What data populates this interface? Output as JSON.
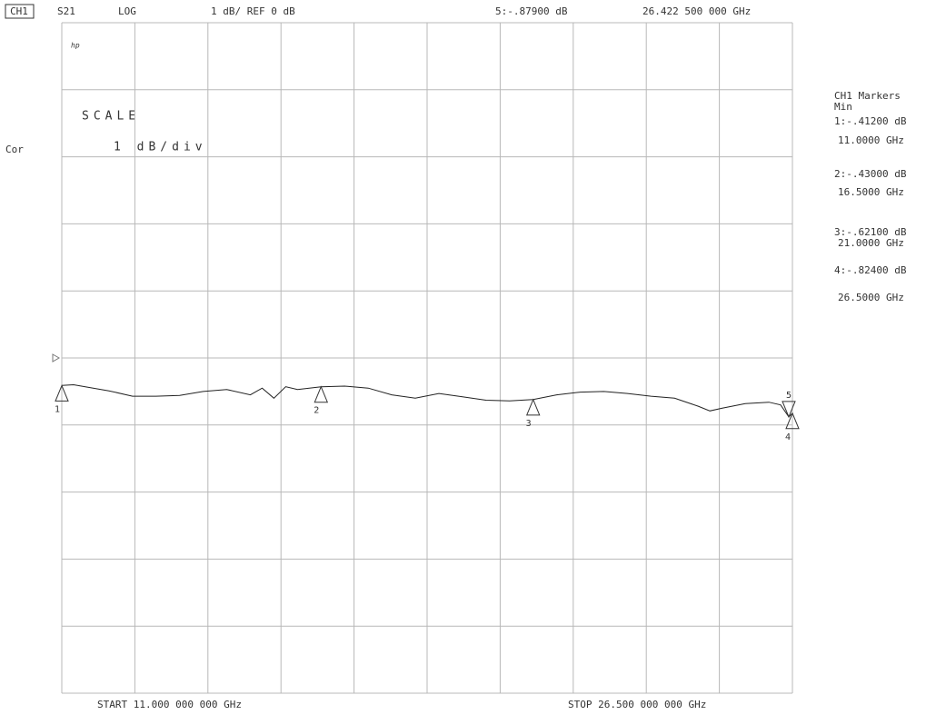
{
  "chart_data": {
    "type": "line",
    "channel": "CH1",
    "format": "LOG",
    "scale_text": "1 dB/ REF 0 dB",
    "scale_title": "SCALE",
    "scale_per_div": "1 dB/div",
    "correction": "Cor",
    "logo": "hp",
    "marker_title": "CH1 Markers",
    "marker_mode": "Min",
    "start_label": "START 11.000 000 000 GHz",
    "stop_label": "STOP 26.500 000 000 GHz",
    "x": [
      11.0,
      11.25,
      11.5,
      12.0,
      12.5,
      13.0,
      13.5,
      14.0,
      14.5,
      15.0,
      15.25,
      15.5,
      15.75,
      16.0,
      16.5,
      17.0,
      17.5,
      18.0,
      18.5,
      19.0,
      19.5,
      20.0,
      20.5,
      21.0,
      21.5,
      22.0,
      22.5,
      23.0,
      23.5,
      24.0,
      24.5,
      24.75,
      25.0,
      25.5,
      26.0,
      26.25,
      26.4225,
      26.5
    ],
    "series": [
      {
        "name": "S21",
        "color": "#222222",
        "values": [
          -0.41,
          -0.4,
          -0.43,
          -0.49,
          -0.57,
          -0.57,
          -0.56,
          -0.5,
          -0.47,
          -0.55,
          -0.45,
          -0.6,
          -0.43,
          -0.47,
          -0.43,
          -0.42,
          -0.45,
          -0.55,
          -0.6,
          -0.53,
          -0.58,
          -0.63,
          -0.64,
          -0.62,
          -0.55,
          -0.51,
          -0.5,
          -0.53,
          -0.57,
          -0.6,
          -0.72,
          -0.79,
          -0.75,
          -0.68,
          -0.66,
          -0.7,
          -0.879,
          -0.824
        ]
      }
    ],
    "xlim": [
      11,
      26.5
    ],
    "ylim": [
      -5,
      5
    ],
    "xticks": [
      11,
      12.55,
      14.1,
      15.65,
      17.2,
      18.75,
      20.3,
      21.85,
      23.4,
      24.95,
      26.5
    ],
    "yticks": [
      -5,
      -4,
      -3,
      -2,
      -1,
      0,
      1,
      2,
      3,
      4,
      5
    ],
    "grid": true,
    "ref_level": 0,
    "markers": [
      {
        "name": "1",
        "x": 11,
        "value": -0.412,
        "value_label": "1:-.41200 dB",
        "x_label": "11.0000 GHz"
      },
      {
        "name": "2",
        "x": 16.5,
        "value": -0.43,
        "value_label": "2:-.43000 dB",
        "x_label": "16.5000 GHz"
      },
      {
        "name": "3",
        "x": 21,
        "value": -0.621,
        "value_label": "3:-.62100 dB",
        "x_label": "21.0000 GHz"
      },
      {
        "name": "4",
        "x": 26.5,
        "value": -0.824,
        "value_label": "4:-.82400 dB",
        "x_label": "26.5000 GHz"
      }
    ],
    "active_marker": {
      "name": "5",
      "x": 26.4225,
      "value": -0.879,
      "value_label": "5:-.87900 dB",
      "x_label": "26.422 500 000 GHz"
    }
  }
}
